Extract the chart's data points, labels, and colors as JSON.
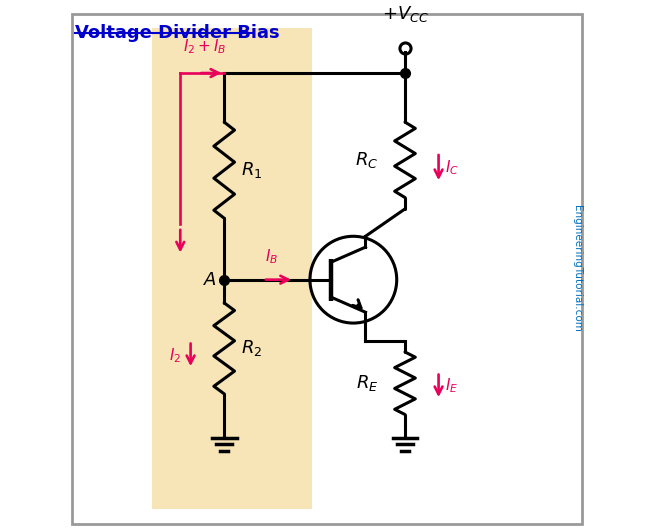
{
  "title": "Voltage Divider Bias",
  "bg_color": "#ffffff",
  "panel_color": "#f5dda0",
  "wire_color": "#000000",
  "resistor_color": "#000000",
  "arrow_color": "#e8005a",
  "transistor_color": "#000000",
  "sidebar_color": "#0070c0",
  "title_color": "#0000cc",
  "sidebar_text": "EngineeringTutorial.com"
}
